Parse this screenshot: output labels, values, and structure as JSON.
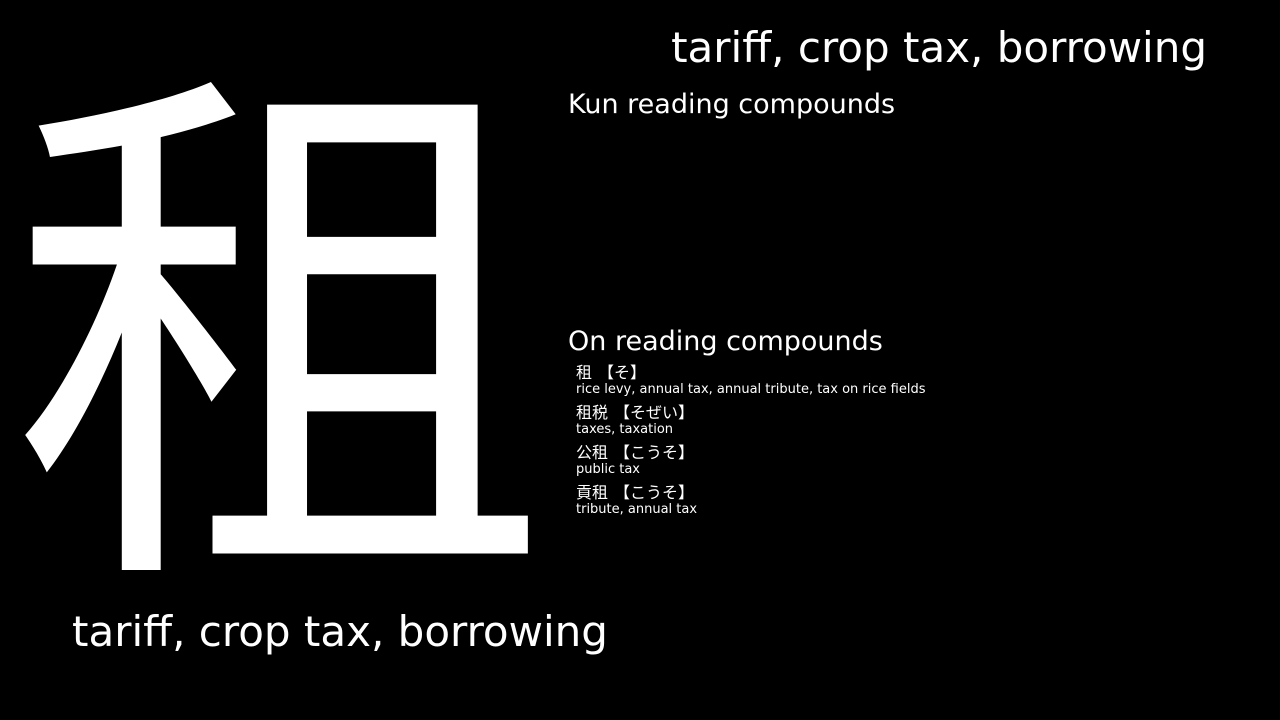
{
  "kanji": "租",
  "meaning": "tariff, crop tax, borrowing",
  "kun_section": {
    "heading": "Kun reading compounds",
    "items": []
  },
  "on_section": {
    "heading": "On reading compounds",
    "items": [
      {
        "word": "租",
        "reading": "【そ】",
        "gloss": "rice levy, annual tax, annual tribute, tax on rice fields"
      },
      {
        "word": "租税",
        "reading": "【そぜい】",
        "gloss": "taxes, taxation"
      },
      {
        "word": "公租",
        "reading": "【こうそ】",
        "gloss": "public tax"
      },
      {
        "word": "貢租",
        "reading": "【こうそ】",
        "gloss": "tribute, annual tax"
      }
    ]
  }
}
